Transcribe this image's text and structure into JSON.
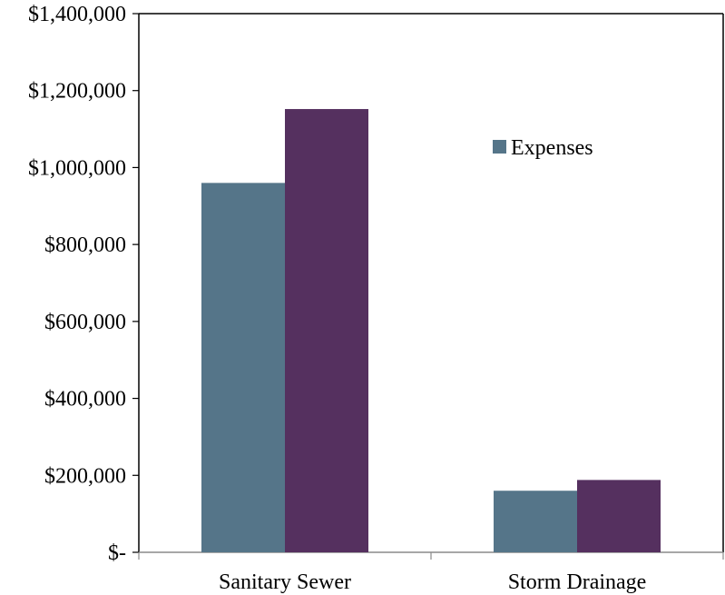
{
  "chart_data": {
    "type": "bar",
    "title": "",
    "xlabel": "",
    "ylabel": "",
    "categories": [
      "Sanitary Sewer",
      "Storm Drainage"
    ],
    "series": [
      {
        "name": "Expenses",
        "color": "#557589",
        "values": [
          960000,
          160000
        ]
      },
      {
        "color": "#55305f",
        "values": [
          1152000,
          188000
        ]
      }
    ],
    "ylim": [
      0,
      1400000
    ],
    "yticks": [
      0,
      200000,
      400000,
      600000,
      800000,
      1000000,
      1200000,
      1400000
    ],
    "ytick_labels": [
      "$-",
      "$200,000",
      "$400,000",
      "$600,000",
      "$800,000",
      "$1,000,000",
      "$1,200,000",
      "$1,400,000"
    ],
    "grid": false,
    "legend": {
      "placement": "top-right",
      "entries": [
        "Expenses"
      ]
    }
  }
}
